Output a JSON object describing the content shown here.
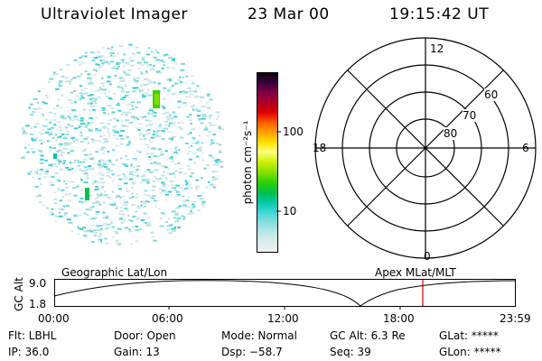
{
  "header": {
    "title": "Ultraviolet Imager",
    "date": "23 Mar 00",
    "time": "19:15:42 UT"
  },
  "colorbar": {
    "unit_label": "photon cm⁻²s⁻¹",
    "tick_100": "100",
    "tick_10": "10",
    "colors": [
      "#f0f0f0",
      "#d8ecec",
      "#b8e6e6",
      "#84dede",
      "#40d8d8",
      "#00c8a0",
      "#00c050",
      "#30d000",
      "#80e000",
      "#c8f000",
      "#ffff80",
      "#ffe000",
      "#ffa000",
      "#ff6000",
      "#e00000",
      "#b00020",
      "#800040",
      "#400040",
      "#100010"
    ]
  },
  "polar": {
    "mlt_12": "12",
    "mlt_18": "18",
    "mlt_6": "6",
    "mlt_0": "0",
    "lat_60": "60",
    "lat_70": "70",
    "lat_80": "80"
  },
  "timeline": {
    "left_label": "Geographic Lat/Lon",
    "right_label": "Apex MLat/MLT",
    "y_axis_label": "GC Alt",
    "y_tick_top": "9.0",
    "y_tick_bottom": "1.8",
    "x_ticks": [
      "00:00",
      "06:00",
      "12:00",
      "18:00",
      "23:59"
    ],
    "marker_color": "#cc0000"
  },
  "status": {
    "filter": "Flt: LBHL",
    "ip": "IP: 36.0",
    "door": "Door: Open",
    "gain": "Gain: 13",
    "mode": "Mode: Normal",
    "dsp": "Dsp:  −58.7",
    "gc_alt": "GC Alt: 6.3 Re",
    "seq": "Seq: 39",
    "glat": "GLat: *****",
    "glon": "GLon: *****"
  }
}
